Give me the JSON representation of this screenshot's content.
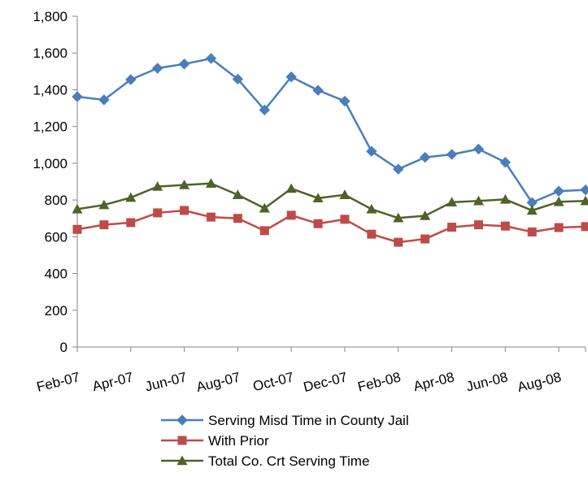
{
  "chart_data": {
    "type": "line",
    "title": "",
    "xlabel": "",
    "ylabel": "",
    "ylim": [
      0,
      1800
    ],
    "y_ticks": [
      0,
      200,
      400,
      600,
      800,
      1000,
      1200,
      1400,
      1600,
      1800
    ],
    "y_tick_labels": [
      "0",
      "200",
      "400",
      "600",
      "800",
      "1,000",
      "1,200",
      "1,400",
      "1,600",
      "1,800"
    ],
    "x": [
      "Feb-07",
      "Mar-07",
      "Apr-07",
      "May-07",
      "Jun-07",
      "Jul-07",
      "Aug-07",
      "Sep-07",
      "Oct-07",
      "Nov-07",
      "Dec-07",
      "Jan-08",
      "Feb-08",
      "Mar-08",
      "Apr-08",
      "May-08",
      "Jun-08",
      "Jul-08",
      "Aug-08",
      "Sep-08"
    ],
    "x_tick_labels": [
      "Feb-07",
      "Apr-07",
      "Jun-07",
      "Aug-07",
      "Oct-07",
      "Dec-07",
      "Feb-08",
      "Apr-08",
      "Jun-08",
      "Aug-08"
    ],
    "grid": false,
    "legend_position": "bottom",
    "series": [
      {
        "name": "Serving Misd Time in County Jail",
        "color": "#4a7ebb",
        "marker": "diamond",
        "values": [
          1362,
          1345,
          1455,
          1517,
          1540,
          1570,
          1458,
          1290,
          1470,
          1397,
          1338,
          1065,
          968,
          1032,
          1048,
          1077,
          1005,
          786,
          848,
          855
        ]
      },
      {
        "name": "With Prior",
        "color": "#be4b48",
        "marker": "square",
        "values": [
          640,
          665,
          677,
          730,
          743,
          707,
          700,
          633,
          717,
          671,
          695,
          614,
          570,
          588,
          652,
          665,
          658,
          626,
          650,
          655
        ]
      },
      {
        "name": "Total Co. Crt Serving Time",
        "color": "#4f6228",
        "marker": "triangle",
        "values": [
          750,
          773,
          813,
          873,
          882,
          890,
          828,
          755,
          862,
          810,
          828,
          750,
          702,
          714,
          788,
          795,
          803,
          743,
          790,
          795
        ]
      }
    ]
  }
}
